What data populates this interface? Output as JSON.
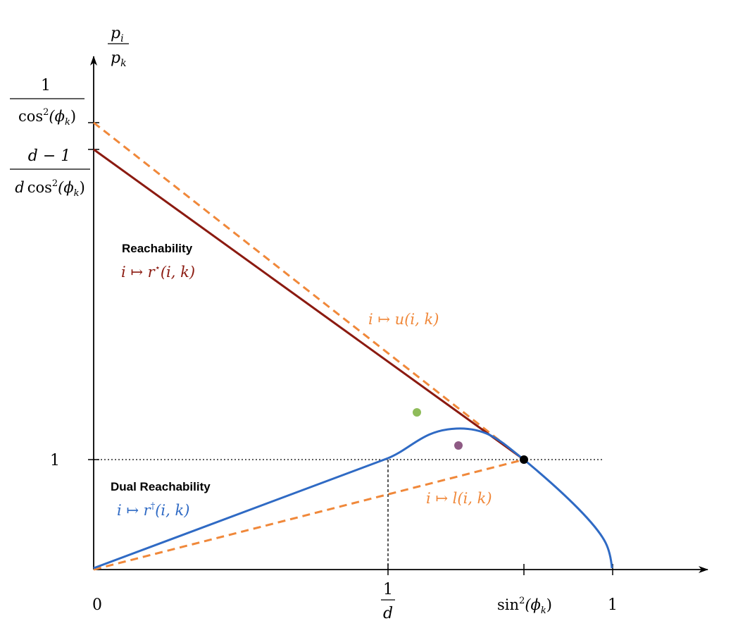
{
  "figure": {
    "y_axis_label": {
      "numerator": "p",
      "numerator_sub": "i",
      "denominator": "p",
      "denominator_sub": "k"
    },
    "y_ticks": {
      "top": {
        "numerator": "1",
        "denominator_func": "cos",
        "denominator_sup": "2",
        "denominator_arg": "(ϕ",
        "denominator_arg_sub": "k",
        "denominator_close": ")"
      },
      "second": {
        "numerator": "d − 1",
        "denominator_pre": "d",
        "denominator_func": "cos",
        "denominator_sup": "2",
        "denominator_arg": "(ϕ",
        "denominator_arg_sub": "k",
        "denominator_close": ")"
      },
      "one": "1"
    },
    "x_ticks": {
      "zero": "0",
      "inv_d": {
        "numerator": "1",
        "denominator": "d"
      },
      "sin2": {
        "func": "sin",
        "sup": "2",
        "arg": "(ϕ",
        "arg_sub": "k",
        "close": ")"
      },
      "one": "1"
    },
    "labels": {
      "reachability_title": "Reachability",
      "reachability_map": {
        "var": "i",
        "arrow": " ↦ ",
        "fn": "r",
        "sup": "⋆",
        "args": "(i, k)"
      },
      "upper_map": {
        "var": "i",
        "arrow": " ↦ ",
        "fn": "u",
        "args": "(i, k)"
      },
      "dual_title": "Dual Reachability",
      "dual_map": {
        "var": "i",
        "arrow": " ↦ ",
        "fn": "r",
        "sup": "†",
        "args": "(i, k)"
      },
      "lower_map": {
        "var": "i",
        "arrow": " ↦ ",
        "fn": "l",
        "args": "(i, k)"
      }
    },
    "colors": {
      "reachability": "#8b1a10",
      "bound": "#f0883a",
      "dual": "#2f6ac4",
      "green_point": "#8fbc5a",
      "purple_point": "#8e5a84",
      "axis": "#000000"
    }
  }
}
